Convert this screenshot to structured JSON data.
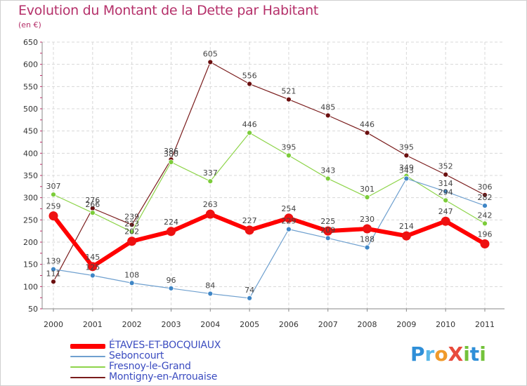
{
  "chart_data": {
    "type": "line",
    "title": "Evolution du Montant de la Dette par Habitant",
    "subtitle": "(en €)",
    "xlabel": "",
    "ylabel": "",
    "ylim": [
      50,
      650
    ],
    "yticks": [
      50,
      100,
      150,
      200,
      250,
      300,
      350,
      400,
      450,
      500,
      550,
      600,
      650
    ],
    "categories": [
      "2000",
      "2001",
      "2002",
      "2003",
      "2004",
      "2005",
      "2006",
      "2007",
      "2008",
      "2009",
      "2010",
      "2011"
    ],
    "grid": true,
    "legend_position": "bottom-left",
    "series": [
      {
        "name": "Montigny-en-Arrouaise",
        "color": "#7a1c1c",
        "marker": "#6b0f0f",
        "width": 1.2,
        "r": 3.5,
        "values": [
          111,
          276,
          239,
          386,
          605,
          556,
          521,
          485,
          446,
          395,
          352,
          306
        ],
        "labels": [
          "111",
          "276",
          "239",
          "386",
          "605",
          "556",
          "521",
          "485",
          "446",
          "395",
          "352",
          "306"
        ]
      },
      {
        "name": "Fresnoy-le-Grand",
        "color": "#8ed44a",
        "marker": "#7ccc3a",
        "width": 1.2,
        "r": 3.5,
        "values": [
          307,
          266,
          223,
          380,
          337,
          446,
          395,
          343,
          301,
          349,
          294,
          242
        ],
        "labels": [
          "307",
          "266",
          "223",
          "380",
          "337",
          "446",
          "395",
          "343",
          "301",
          "349",
          "294",
          "242"
        ]
      },
      {
        "name": "Seboncourt",
        "color": "#6fa0cf",
        "marker": "#3f86c6",
        "width": 1.2,
        "r": 3.5,
        "values": [
          139,
          125,
          108,
          96,
          84,
          74,
          229,
          209,
          188,
          343,
          314,
          282
        ],
        "labels": [
          "139",
          "125",
          "108",
          "96",
          "84",
          "74",
          "229",
          "209",
          "188",
          "343",
          "314",
          "282"
        ]
      },
      {
        "name": "ÉTAVES-ET-BOCQUIAUX",
        "color": "#ff0000",
        "marker": "#ee1111",
        "width": 6,
        "r": 6.5,
        "values": [
          259,
          145,
          202,
          224,
          263,
          227,
          254,
          225,
          230,
          214,
          247,
          196
        ],
        "labels": [
          "259",
          "145",
          "202",
          "224",
          "263",
          "227",
          "254",
          "225",
          "230",
          "214",
          "247",
          "196"
        ]
      }
    ]
  },
  "legend": {
    "items": [
      {
        "label": "ÉTAVES-ET-BOCQUIAUX",
        "color": "#ff0000"
      },
      {
        "label": "Seboncourt",
        "color": "#6fa0cf"
      },
      {
        "label": "Fresnoy-le-Grand",
        "color": "#8ed44a"
      },
      {
        "label": "Montigny-en-Arrouaise",
        "color": "#7a1c1c"
      }
    ]
  },
  "logo": {
    "letters": [
      {
        "char": "P",
        "color": "#2f8fd8"
      },
      {
        "char": "r",
        "color": "#5bb8e8"
      },
      {
        "char": "o",
        "color": "#f09a2a"
      },
      {
        "char": "X",
        "color": "#e84b3c"
      },
      {
        "char": "i",
        "color": "#73c23a"
      },
      {
        "char": "t",
        "color": "#2f8fd8"
      },
      {
        "char": "i",
        "color": "#73c23a"
      }
    ]
  }
}
